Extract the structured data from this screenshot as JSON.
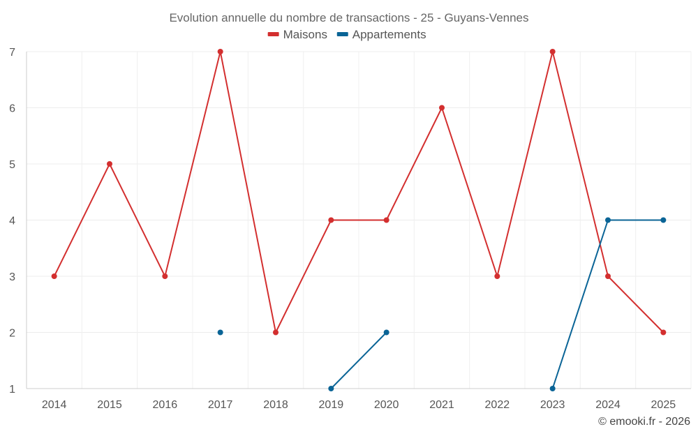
{
  "chart_data": {
    "type": "line",
    "title": "Evolution annuelle du nombre de transactions - 25 - Guyans-Vennes",
    "categories": [
      "2014",
      "2015",
      "2016",
      "2017",
      "2018",
      "2019",
      "2020",
      "2021",
      "2022",
      "2023",
      "2024",
      "2025"
    ],
    "ylim": [
      1,
      7
    ],
    "yticks": [
      "1",
      "2",
      "3",
      "4",
      "5",
      "6",
      "7"
    ],
    "grid": true,
    "legend_position": "top-center",
    "series": [
      {
        "name": "Maisons",
        "color": "#d32f2f",
        "values": [
          3,
          5,
          3,
          7,
          2,
          4,
          4,
          6,
          3,
          7,
          3,
          2
        ]
      },
      {
        "name": "Appartements",
        "color": "#0a6496",
        "values": [
          null,
          null,
          null,
          2,
          null,
          1,
          2,
          null,
          null,
          1,
          4,
          4
        ]
      }
    ],
    "credit": "© emooki.fr - 2026"
  }
}
